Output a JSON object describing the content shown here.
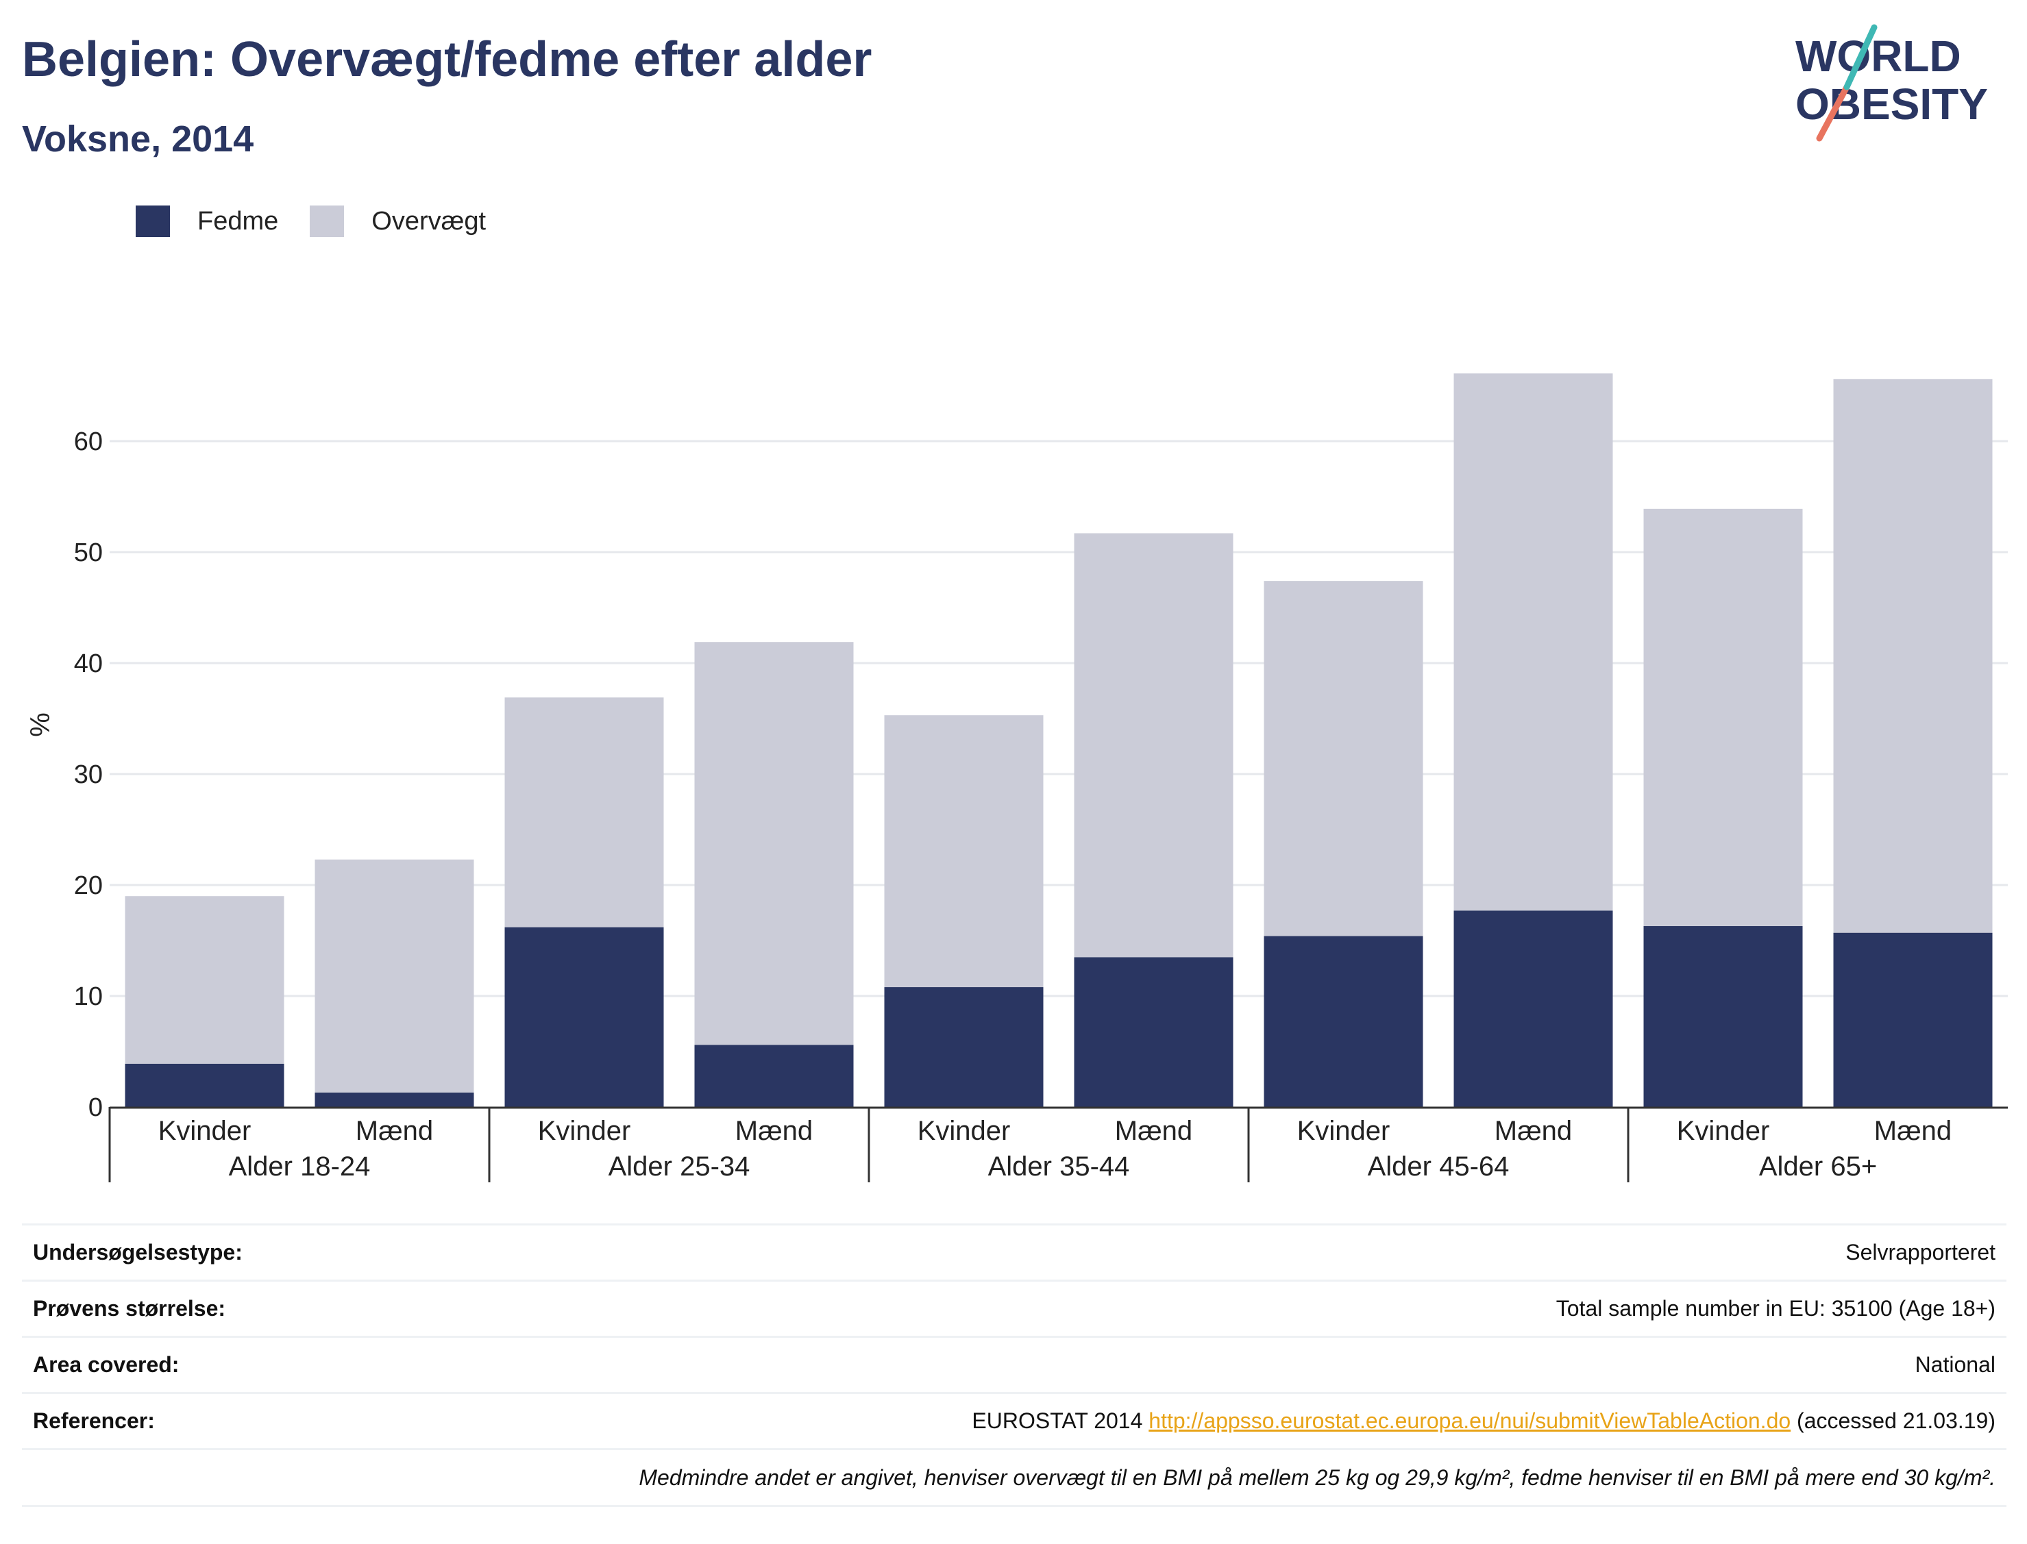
{
  "title": "Belgien: Overvægt/fedme efter alder",
  "subtitle": "Voksne, 2014",
  "logo": {
    "line1": "WORLD",
    "line2": "OBESITY"
  },
  "colors": {
    "fedme": "#2a3662",
    "overvaegt": "#cbccd8",
    "grid": "#e6e8ec",
    "axis": "#333333",
    "title": "#2a3662",
    "link": "#e8a317"
  },
  "chart_data": {
    "type": "bar",
    "stacked": true,
    "ylabel": "%",
    "ylim": [
      0,
      68
    ],
    "yticks": [
      0,
      10,
      20,
      30,
      40,
      50,
      60
    ],
    "grid": true,
    "legend_position": "top-left",
    "groups": [
      "Alder 18-24",
      "Alder 25-34",
      "Alder 35-44",
      "Alder 45-64",
      "Alder 65+"
    ],
    "categories": [
      "Kvinder",
      "Mænd",
      "Kvinder",
      "Mænd",
      "Kvinder",
      "Mænd",
      "Kvinder",
      "Mænd",
      "Kvinder",
      "Mænd"
    ],
    "series": [
      {
        "name": "Fedme",
        "values": [
          3.9,
          1.3,
          16.2,
          5.6,
          10.8,
          13.5,
          15.4,
          17.7,
          16.3,
          15.7
        ]
      },
      {
        "name": "Overvægt",
        "values": [
          15.1,
          21.0,
          20.7,
          36.3,
          24.5,
          38.2,
          32.0,
          48.4,
          37.6,
          49.9
        ]
      }
    ]
  },
  "info": [
    {
      "key": "Undersøgelsestype:",
      "value": "Selvrapporteret"
    },
    {
      "key": "Prøvens størrelse:",
      "value": "Total sample number in EU: 35100 (Age 18+)"
    },
    {
      "key": "Area covered:",
      "value": "National"
    }
  ],
  "reference": {
    "key": "Referencer:",
    "prefix": "EUROSTAT 2014",
    "link": "http://appsso.eurostat.ec.europa.eu/nui/submitViewTableAction.do",
    "suffix": "(accessed 21.03.19)"
  },
  "note": "Medmindre andet er angivet, henviser overvægt til en BMI på mellem 25 kg og 29,9 kg/m², fedme henviser til en BMI på mere end 30 kg/m²."
}
